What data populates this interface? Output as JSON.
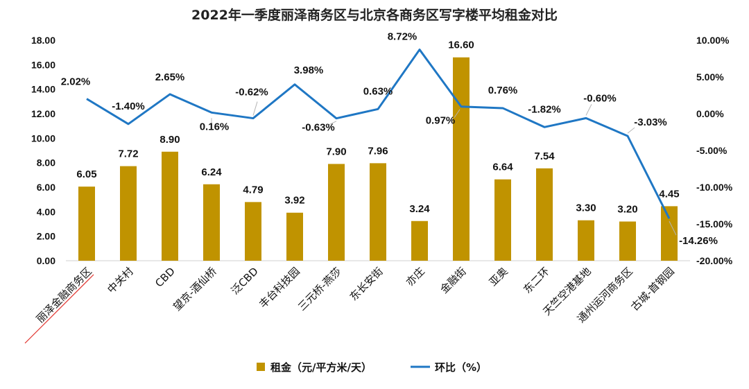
{
  "chart_data": {
    "type": "bar",
    "title": "2022年一季度丽泽商务区与北京各商务区写字楼平均租金对比",
    "categories": [
      "丽泽金融商务区",
      "中关村",
      "CBD",
      "望京-酒仙桥",
      "泛CBD",
      "丰台科技园",
      "三元桥-燕莎",
      "东长安街",
      "亦庄",
      "金融街",
      "亚奥",
      "东二环",
      "天竺空港基地",
      "通州运河商务区",
      "古城-首钢园"
    ],
    "series": [
      {
        "name": "租金（元/平方米/天）",
        "type": "bar",
        "axis": "left",
        "color": "#C09300",
        "values": [
          6.05,
          7.72,
          8.9,
          6.24,
          4.79,
          3.92,
          7.9,
          7.96,
          3.24,
          16.6,
          6.64,
          7.54,
          3.3,
          3.2,
          4.45
        ],
        "labels": [
          "6.05",
          "7.72",
          "8.90",
          "6.24",
          "4.79",
          "3.92",
          "7.90",
          "7.96",
          "3.24",
          "16.60",
          "6.64",
          "7.54",
          "3.30",
          "3.20",
          "4.45"
        ]
      },
      {
        "name": "环比（%）",
        "type": "line",
        "axis": "right",
        "color": "#1F77C4",
        "values": [
          2.02,
          -1.4,
          2.65,
          0.16,
          -0.62,
          3.98,
          -0.63,
          0.63,
          8.72,
          0.97,
          0.76,
          -1.82,
          -0.6,
          -3.03,
          -14.26
        ],
        "labels": [
          "2.02%",
          "-1.40%",
          "2.65%",
          "0.16%",
          "-0.62%",
          "3.98%",
          "-0.63%",
          "0.63%",
          "8.72%",
          "0.97%",
          "0.76%",
          "-1.82%",
          "-0.60%",
          "-3.03%",
          "-14.26%"
        ]
      }
    ],
    "y_left": {
      "min": 0,
      "max": 18,
      "ticks": [
        "0.00",
        "2.00",
        "4.00",
        "6.00",
        "8.00",
        "10.00",
        "12.00",
        "14.00",
        "16.00",
        "18.00"
      ]
    },
    "y_right": {
      "min": -20,
      "max": 10,
      "ticks": [
        "-20.00%",
        "-15.00%",
        "-10.00%",
        "-5.00%",
        "0.00%",
        "5.00%",
        "10.00%"
      ]
    },
    "grid": false,
    "legend": "bottom",
    "highlight_category": "丽泽金融商务区",
    "highlight_color": "#E0302A"
  }
}
